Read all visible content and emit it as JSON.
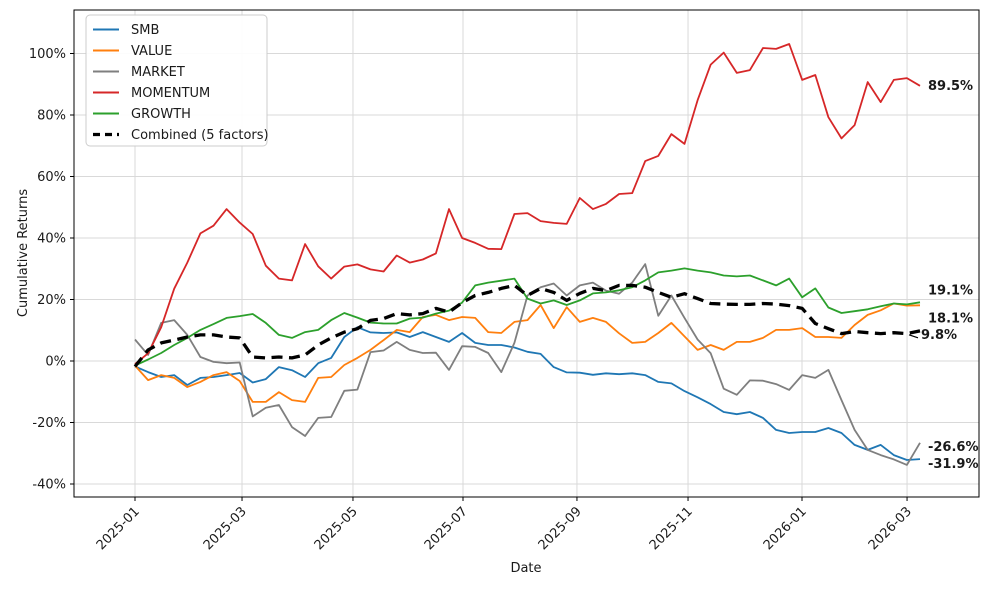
{
  "chart_data": {
    "type": "line",
    "title": "",
    "xlabel": "Date",
    "ylabel": "Cumulative Returns",
    "grid": true,
    "legend_position": "upper-left",
    "x_unit": "weekly observations from 2025-01 through 2026-03",
    "ylim": [
      -44.2,
      114.3
    ],
    "xlim_weeks": [
      -4.66,
      64.5
    ],
    "grid_color": "#d9d9d9",
    "spine_color": "#000000",
    "x_ticks": {
      "labels": [
        "2025-01",
        "2025-03",
        "2025-05",
        "2025-07",
        "2025-09",
        "2025-11",
        "2026-01",
        "2026-03"
      ],
      "week_positions": [
        0,
        8.18,
        16.66,
        25.07,
        33.78,
        42.27,
        50.98,
        59.01
      ]
    },
    "y_ticks": {
      "labels": [
        "-40%",
        "-20%",
        "0%",
        "20%",
        "40%",
        "60%",
        "80%",
        "100%"
      ],
      "values": [
        -40,
        -20,
        0,
        20,
        40,
        60,
        80,
        100
      ]
    },
    "series": [
      {
        "name": "SMB",
        "color": "#1f77b4",
        "style": "solid",
        "end_label": "-31.9%",
        "values": [
          -1.8,
          -3.6,
          -5.2,
          -4.6,
          -7.8,
          -5.5,
          -5.2,
          -4.6,
          -3.9,
          -7.0,
          -5.9,
          -2.0,
          -3.0,
          -5.2,
          -0.7,
          1.0,
          7.8,
          11.0,
          9.3,
          9.1,
          9.3,
          7.8,
          9.4,
          7.8,
          6.2,
          9.1,
          5.9,
          5.2,
          5.2,
          4.4,
          3.0,
          2.3,
          -2.0,
          -3.7,
          -3.8,
          -4.5,
          -4.0,
          -4.3,
          -4.0,
          -4.6,
          -6.8,
          -7.3,
          -9.8,
          -11.8,
          -14.0,
          -16.6,
          -17.3,
          -16.6,
          -18.5,
          -22.4,
          -23.4,
          -23.1,
          -23.1,
          -21.8,
          -23.4,
          -27.3,
          -28.9,
          -27.3,
          -30.6,
          -32.2,
          -31.9
        ]
      },
      {
        "name": "VALUE",
        "color": "#ff7f0e",
        "style": "solid",
        "end_label": "18.1%",
        "values": [
          -1.5,
          -6.2,
          -4.6,
          -5.5,
          -8.5,
          -6.8,
          -4.6,
          -3.6,
          -6.5,
          -13.3,
          -13.3,
          -10.1,
          -12.7,
          -13.3,
          -5.5,
          -5.2,
          -1.3,
          1.0,
          3.6,
          6.8,
          10.1,
          9.4,
          14.3,
          15.0,
          13.3,
          14.3,
          14.0,
          9.4,
          9.1,
          12.7,
          13.3,
          18.2,
          10.7,
          17.5,
          12.7,
          14.0,
          12.7,
          9.0,
          5.9,
          6.2,
          9.1,
          12.4,
          8.0,
          3.6,
          5.2,
          3.6,
          6.2,
          6.2,
          7.5,
          10.1,
          10.1,
          10.7,
          7.8,
          7.8,
          7.5,
          11.7,
          15.0,
          16.5,
          18.7,
          18.0,
          18.1
        ]
      },
      {
        "name": "MARKET",
        "color": "#7f7f7f",
        "style": "solid",
        "end_label": "-26.6%",
        "values": [
          7.0,
          2.0,
          12.4,
          13.3,
          8.5,
          1.3,
          -0.3,
          -0.7,
          -0.5,
          -18.0,
          -15.2,
          -14.3,
          -21.5,
          -24.4,
          -18.5,
          -18.2,
          -9.7,
          -9.3,
          2.9,
          3.4,
          6.2,
          3.6,
          2.6,
          2.7,
          -2.9,
          4.8,
          4.6,
          2.6,
          -3.6,
          5.9,
          21.3,
          24.0,
          25.2,
          21.3,
          24.6,
          25.5,
          22.9,
          21.9,
          25.5,
          31.5,
          14.7,
          21.3,
          14.0,
          7.0,
          2.5,
          -9.0,
          -11.0,
          -6.3,
          -6.4,
          -7.5,
          -9.4,
          -4.6,
          -5.5,
          -2.9,
          -12.7,
          -22.4,
          -28.9,
          -30.6,
          -32.0,
          -33.8,
          -26.6
        ]
      },
      {
        "name": "MOMENTUM",
        "color": "#d62728",
        "style": "solid",
        "end_label": "89.5%",
        "values": [
          -1.0,
          2.5,
          11.0,
          23.5,
          32.0,
          41.5,
          44.0,
          49.4,
          45.0,
          41.3,
          31.0,
          26.8,
          26.2,
          38.0,
          30.8,
          26.8,
          30.7,
          31.4,
          29.8,
          29.1,
          34.3,
          32.0,
          33.0,
          35.0,
          49.4,
          40.0,
          38.4,
          36.5,
          36.4,
          47.8,
          48.1,
          45.5,
          44.9,
          44.6,
          53.0,
          49.4,
          51.1,
          54.3,
          54.6,
          65.0,
          66.7,
          73.8,
          70.6,
          84.8,
          96.4,
          100.3,
          93.7,
          94.6,
          101.8,
          101.5,
          103.1,
          91.4,
          93.0,
          79.3,
          72.4,
          76.7,
          90.7,
          84.2,
          91.4,
          92.0,
          89.5
        ]
      },
      {
        "name": "GROWTH",
        "color": "#2ca02c",
        "style": "solid",
        "end_label": "19.1%",
        "values": [
          -1.5,
          0.5,
          2.6,
          5.2,
          7.5,
          10.1,
          12.0,
          14.0,
          14.6,
          15.3,
          12.4,
          8.5,
          7.5,
          9.4,
          10.1,
          13.3,
          15.6,
          14.1,
          12.5,
          12.2,
          12.2,
          13.8,
          14.1,
          15.4,
          16.4,
          19.0,
          24.6,
          25.5,
          26.1,
          26.8,
          20.3,
          18.7,
          19.7,
          18.2,
          19.7,
          22.0,
          22.3,
          23.0,
          24.0,
          26.2,
          28.8,
          29.4,
          30.1,
          29.4,
          28.8,
          27.8,
          27.5,
          27.8,
          26.2,
          24.6,
          26.8,
          20.7,
          23.6,
          17.4,
          15.6,
          16.2,
          16.8,
          17.8,
          18.7,
          18.4,
          19.1
        ]
      },
      {
        "name": "Combined (5 factors)",
        "color": "#000000",
        "style": "dashed",
        "end_label": "9.8%",
        "values": [
          -1.8,
          3.6,
          5.9,
          6.8,
          7.8,
          8.5,
          8.5,
          7.8,
          7.5,
          1.3,
          1.0,
          1.3,
          1.0,
          2.0,
          5.2,
          7.5,
          9.4,
          10.5,
          13.2,
          13.8,
          15.4,
          15.0,
          15.4,
          17.1,
          15.9,
          19.0,
          21.3,
          22.3,
          23.6,
          24.6,
          21.3,
          23.6,
          22.3,
          19.7,
          22.0,
          23.6,
          22.9,
          24.6,
          24.6,
          24.0,
          22.3,
          20.7,
          21.9,
          20.3,
          18.7,
          18.5,
          18.4,
          18.4,
          18.7,
          18.5,
          18.0,
          17.1,
          12.2,
          10.5,
          8.9,
          9.6,
          9.2,
          8.9,
          9.2,
          8.9,
          9.8
        ]
      }
    ]
  }
}
